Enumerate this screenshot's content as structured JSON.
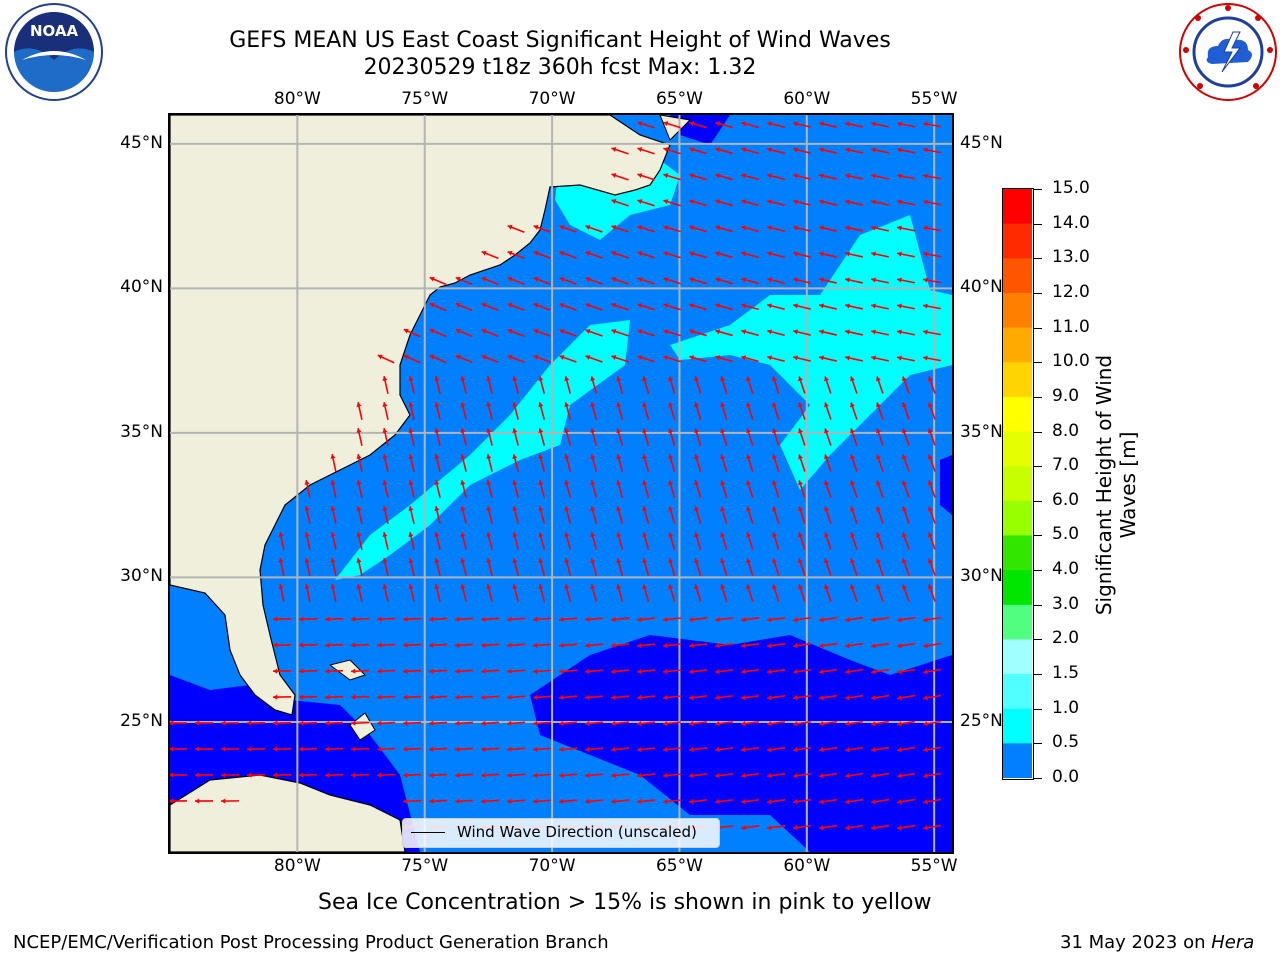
{
  "title": {
    "line1": "GEFS MEAN US East Coast Significant Height of Wind Waves",
    "line2": "20230529 t18z 360h fcst   Max: 1.32"
  },
  "logos": {
    "left": "NOAA",
    "right": "NATIONAL WEATHER SERVICE"
  },
  "map": {
    "lon_labels": [
      "80°W",
      "75°W",
      "70°W",
      "65°W",
      "60°W",
      "55°W"
    ],
    "lat_labels": [
      "45°N",
      "40°N",
      "35°N",
      "30°N",
      "25°N"
    ],
    "lon_range": [
      -85,
      -54.3
    ],
    "lat_range": [
      20.5,
      46
    ],
    "legend_label": "Wind Wave Direction (unscaled)",
    "arrow_color": "#ff0000",
    "land_color": "#efefdc"
  },
  "colorbar": {
    "label_line1": "Significant Height of Wind",
    "label_line2": "Waves [m]",
    "ticks": [
      "15.0",
      "14.0",
      "13.0",
      "12.0",
      "11.0",
      "10.0",
      "9.0",
      "8.0",
      "7.0",
      "6.0",
      "5.0",
      "4.0",
      "3.0",
      "2.0",
      "1.5",
      "1.0",
      "0.5",
      "0.0"
    ],
    "colors_top_to_bottom": [
      "#ff0000",
      "#ff2a00",
      "#ff5500",
      "#ff8000",
      "#ffaa00",
      "#ffd400",
      "#ffff00",
      "#e6ff00",
      "#c8ff00",
      "#96ff00",
      "#32e600",
      "#00e600",
      "#50ff80",
      "#a0ffff",
      "#50ffff",
      "#00ffff",
      "#0080ff",
      "#0000ff"
    ]
  },
  "footer": {
    "note": "Sea Ice Concentration > 15% is shown in pink to yellow",
    "left": "NCEP/EMC/Verification Post Processing Product Generation Branch",
    "date": "31 May 2023 on",
    "machine": "Hera"
  }
}
